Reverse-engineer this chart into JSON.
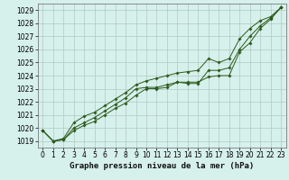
{
  "title": "Graphe pression niveau de la mer (hPa)",
  "background_color": "#d6f0ec",
  "grid_color": "#b0c8c4",
  "line_color": "#2d5a1b",
  "ylim": [
    1018.5,
    1029.5
  ],
  "xlim": [
    -0.5,
    23.5
  ],
  "yticks": [
    1019,
    1020,
    1021,
    1022,
    1023,
    1024,
    1025,
    1026,
    1027,
    1028,
    1029
  ],
  "xticks": [
    0,
    1,
    2,
    3,
    4,
    5,
    6,
    7,
    8,
    9,
    10,
    11,
    12,
    13,
    14,
    15,
    16,
    17,
    18,
    19,
    20,
    21,
    22,
    23
  ],
  "series": [
    [
      1019.8,
      1019.0,
      1019.1,
      1019.8,
      1020.2,
      1020.5,
      1021.0,
      1021.5,
      1021.9,
      1022.5,
      1023.0,
      1023.0,
      1023.1,
      1023.5,
      1023.5,
      1023.5,
      1023.9,
      1024.0,
      1024.0,
      1025.8,
      1026.5,
      1027.6,
      1028.3,
      1029.2
    ],
    [
      1019.8,
      1019.0,
      1019.1,
      1020.0,
      1020.4,
      1020.8,
      1021.3,
      1021.8,
      1022.3,
      1023.0,
      1023.1,
      1023.1,
      1023.3,
      1023.5,
      1023.4,
      1023.4,
      1024.4,
      1024.4,
      1024.6,
      1026.0,
      1027.0,
      1027.8,
      1028.4,
      1029.2
    ],
    [
      1019.8,
      1019.0,
      1019.2,
      1020.4,
      1020.9,
      1021.2,
      1021.7,
      1022.2,
      1022.7,
      1023.3,
      1023.6,
      1023.8,
      1024.0,
      1024.2,
      1024.3,
      1024.4,
      1025.3,
      1025.0,
      1025.3,
      1026.8,
      1027.6,
      1028.2,
      1028.5,
      1029.2
    ]
  ],
  "xlabel_fontsize": 6.5,
  "tick_fontsize": 5.5
}
